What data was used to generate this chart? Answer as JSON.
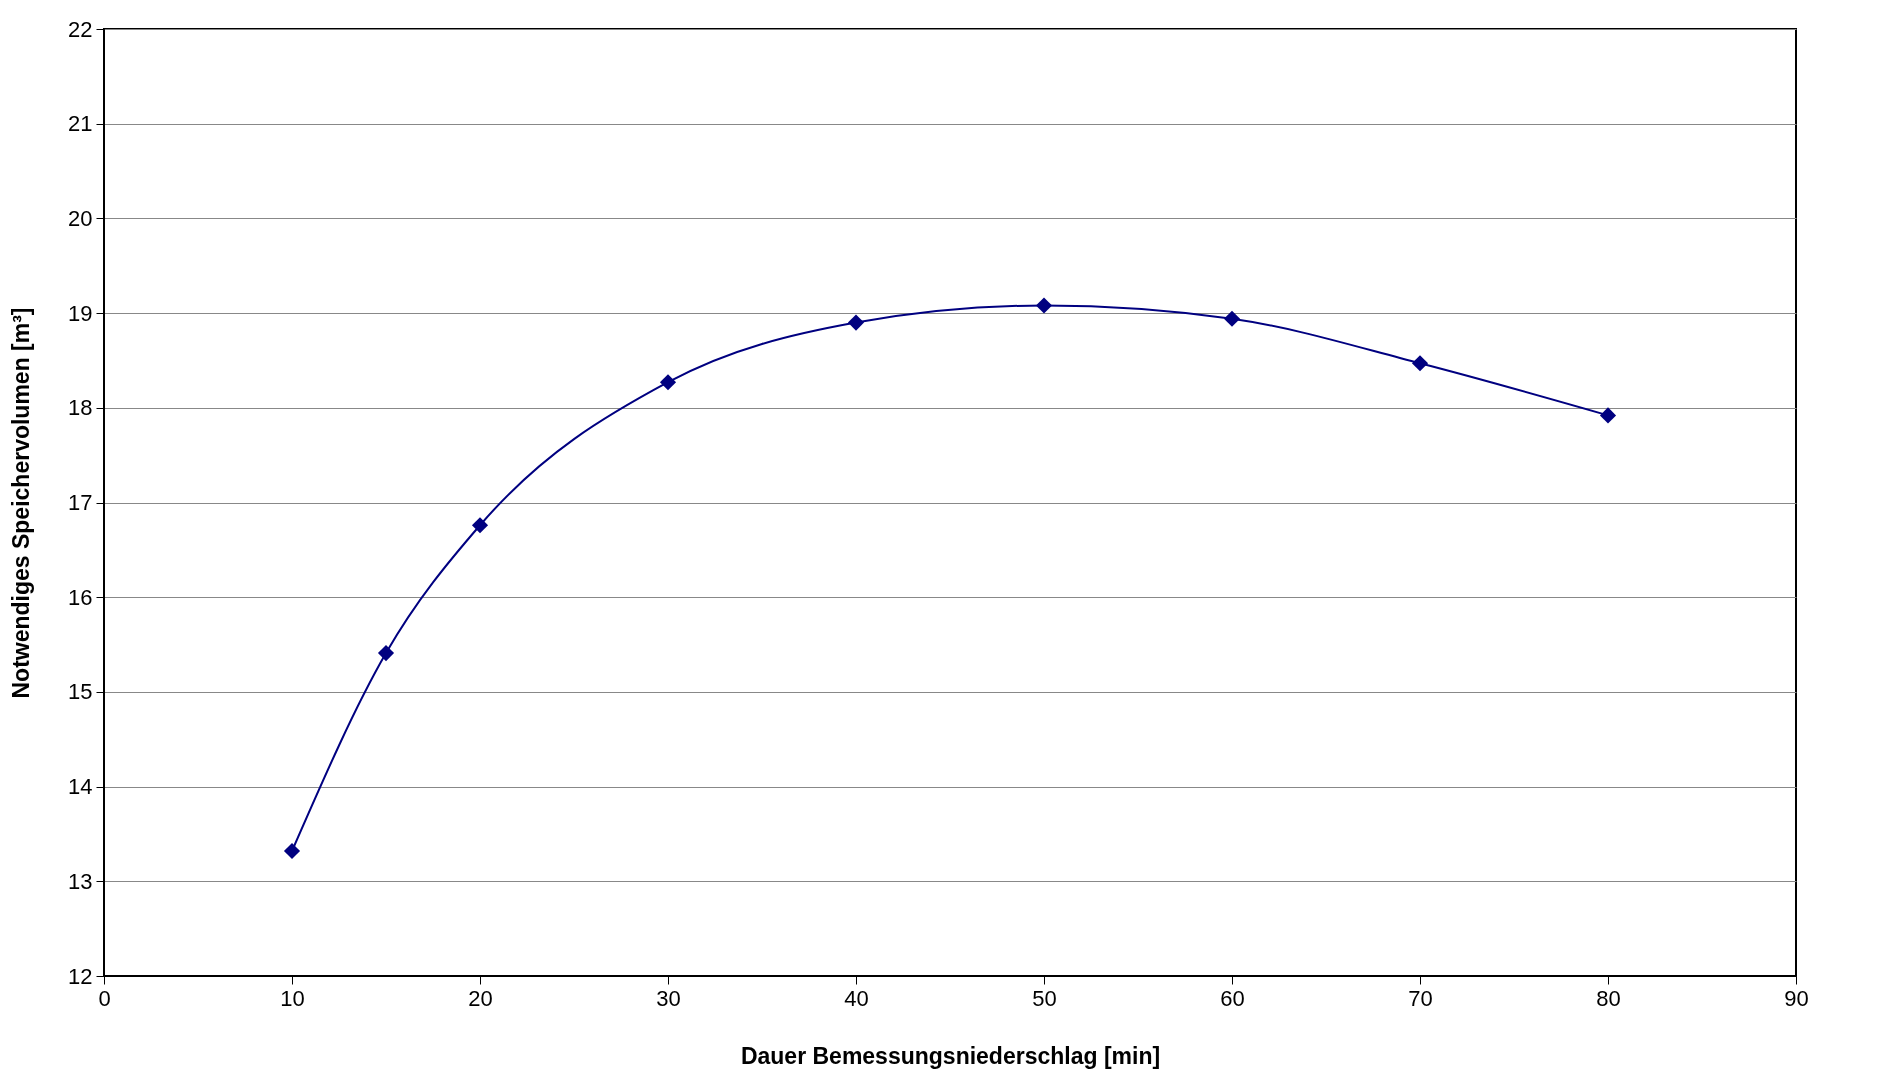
{
  "chart_data": {
    "type": "line",
    "xlabel": "Dauer Bemessungsniederschlag [min]",
    "ylabel": "Notwendiges Speichervolumen [m³]",
    "x": [
      10,
      15,
      20,
      30,
      40,
      50,
      60,
      70,
      80
    ],
    "series": [
      {
        "color": "#000080",
        "values": [
          13.32,
          15.41,
          16.76,
          18.27,
          18.9,
          19.08,
          18.94,
          18.47,
          17.92
        ]
      }
    ],
    "xlim": [
      0,
      90
    ],
    "xticks": [
      0,
      10,
      20,
      30,
      40,
      50,
      60,
      70,
      80,
      90
    ],
    "ylim": [
      12,
      22
    ],
    "yticks": [
      12,
      13,
      14,
      15,
      16,
      17,
      18,
      19,
      20,
      21,
      22
    ],
    "grid": "y",
    "marker": "diamond",
    "line_style": "solid"
  }
}
